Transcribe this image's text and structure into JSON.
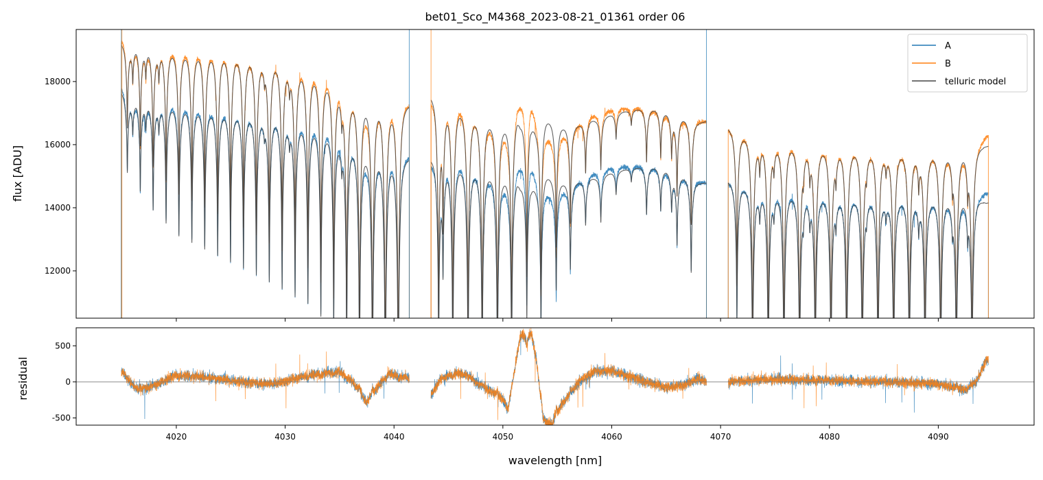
{
  "chart_data": {
    "type": "line",
    "title": "bet01_Sco_M4368_2023-08-21_01361  order 06",
    "xlabel": "wavelength [nm]",
    "xlim": [
      4010.8,
      4098.8
    ],
    "xticks": [
      4020,
      4030,
      4040,
      4050,
      4060,
      4070,
      4080,
      4090
    ],
    "panels": [
      {
        "name": "flux",
        "ylabel": "flux [ADU]",
        "ylim": [
          10500,
          19650
        ],
        "yticks": [
          12000,
          14000,
          16000,
          18000
        ]
      },
      {
        "name": "residual",
        "ylabel": "residual",
        "ylim": [
          -600,
          750
        ],
        "yticks": [
          -500,
          0,
          500
        ],
        "zero_line": true
      }
    ],
    "legend": {
      "position": "upper right",
      "entries": [
        "A",
        "B",
        "telluric model"
      ]
    },
    "colors": {
      "A": "#1f77b4",
      "B": "#ff7f0e",
      "telluric model": "#444444",
      "zero_line": "#777777"
    },
    "segments": [
      [
        4014.95,
        4041.4
      ],
      [
        4043.4,
        4068.7
      ],
      [
        4070.7,
        4094.6
      ]
    ],
    "continuum": {
      "A": [
        [
          4015,
          17900
        ],
        [
          4016,
          17550
        ],
        [
          4020,
          17450
        ],
        [
          4025,
          17200
        ],
        [
          4030,
          16950
        ],
        [
          4033,
          16800
        ],
        [
          4034.5,
          16650
        ],
        [
          4036,
          16300
        ],
        [
          4037.5,
          15700
        ],
        [
          4039,
          15900
        ],
        [
          4041.4,
          15700
        ],
        [
          4043.4,
          15500
        ],
        [
          4044,
          15750
        ],
        [
          4046,
          15650
        ],
        [
          4048,
          15300
        ],
        [
          4049.5,
          15000
        ],
        [
          4050.5,
          14800
        ],
        [
          4051.3,
          15500
        ],
        [
          4052.5,
          15700
        ],
        [
          4053.4,
          14800
        ],
        [
          4054.5,
          14500
        ],
        [
          4056,
          14700
        ],
        [
          4058,
          15100
        ],
        [
          4060,
          15300
        ],
        [
          4062,
          15350
        ],
        [
          4064,
          15300
        ],
        [
          4066,
          15100
        ],
        [
          4068.7,
          14800
        ],
        [
          4070.7,
          14900
        ],
        [
          4072,
          14850
        ],
        [
          4075,
          14700
        ],
        [
          4080,
          14550
        ],
        [
          4085,
          14450
        ],
        [
          4090,
          14400
        ],
        [
          4093,
          14350
        ],
        [
          4094.4,
          14500
        ]
      ],
      "B": [
        [
          4015,
          19450
        ],
        [
          4016,
          19300
        ],
        [
          4020,
          19200
        ],
        [
          4025,
          19050
        ],
        [
          4030,
          18750
        ],
        [
          4033,
          18500
        ],
        [
          4034.5,
          18300
        ],
        [
          4036,
          17800
        ],
        [
          4037.5,
          17300
        ],
        [
          4039,
          17600
        ],
        [
          4041.4,
          17400
        ],
        [
          4043.4,
          17500
        ],
        [
          4044,
          17700
        ],
        [
          4046,
          17500
        ],
        [
          4048,
          17000
        ],
        [
          4049.5,
          16700
        ],
        [
          4050.5,
          16500
        ],
        [
          4051.3,
          17500
        ],
        [
          4052.5,
          17700
        ],
        [
          4053.4,
          16600
        ],
        [
          4054.5,
          16300
        ],
        [
          4056,
          16500
        ],
        [
          4058,
          16950
        ],
        [
          4060,
          17150
        ],
        [
          4062,
          17200
        ],
        [
          4064,
          17150
        ],
        [
          4066,
          16950
        ],
        [
          4068.7,
          16750
        ],
        [
          4070.7,
          16600
        ],
        [
          4072,
          16500
        ],
        [
          4075,
          16300
        ],
        [
          4080,
          16100
        ],
        [
          4085,
          16000
        ],
        [
          4090,
          15900
        ],
        [
          4093,
          15850
        ],
        [
          4094.4,
          16300
        ]
      ]
    },
    "residual_trend": [
      [
        4015,
        150
      ],
      [
        4015.8,
        0
      ],
      [
        4016.5,
        -120
      ],
      [
        4018,
        -50
      ],
      [
        4020,
        100
      ],
      [
        4023,
        60
      ],
      [
        4026,
        0
      ],
      [
        4029,
        -30
      ],
      [
        4031,
        50
      ],
      [
        4033,
        120
      ],
      [
        4035,
        150
      ],
      [
        4036.2,
        0
      ],
      [
        4037.5,
        -300
      ],
      [
        4038.6,
        -50
      ],
      [
        4039.5,
        120
      ],
      [
        4041.4,
        50
      ],
      [
        4043.4,
        -200
      ],
      [
        4044.3,
        50
      ],
      [
        4045.5,
        130
      ],
      [
        4046.8,
        100
      ],
      [
        4047.5,
        0
      ],
      [
        4049,
        -150
      ],
      [
        4050,
        -250
      ],
      [
        4050.5,
        -400
      ],
      [
        4051,
        100
      ],
      [
        4051.6,
        650
      ],
      [
        4052.6,
        700
      ],
      [
        4053.1,
        300
      ],
      [
        4053.7,
        -550
      ],
      [
        4054.5,
        -600
      ],
      [
        4055.5,
        -300
      ],
      [
        4057,
        0
      ],
      [
        4058.5,
        150
      ],
      [
        4060,
        150
      ],
      [
        4061.5,
        80
      ],
      [
        4063,
        0
      ],
      [
        4065,
        -80
      ],
      [
        4066.5,
        -50
      ],
      [
        4068,
        50
      ],
      [
        4068.7,
        0
      ],
      [
        4070.7,
        0
      ],
      [
        4073,
        30
      ],
      [
        4076,
        40
      ],
      [
        4080,
        20
      ],
      [
        4085,
        0
      ],
      [
        4090,
        -30
      ],
      [
        4092.5,
        -120
      ],
      [
        4093.5,
        0
      ],
      [
        4094.4,
        300
      ]
    ],
    "telluric_lines": [
      [
        4015.5,
        0.14
      ],
      [
        4016.69,
        0.17
      ],
      [
        4017.87,
        0.2
      ],
      [
        4019.06,
        0.22
      ],
      [
        4020.24,
        0.24
      ],
      [
        4021.43,
        0.25
      ],
      [
        4022.61,
        0.26
      ],
      [
        4023.8,
        0.27
      ],
      [
        4024.98,
        0.28
      ],
      [
        4026.17,
        0.29
      ],
      [
        4027.35,
        0.3
      ],
      [
        4028.54,
        0.31
      ],
      [
        4029.72,
        0.32
      ],
      [
        4030.91,
        0.33
      ],
      [
        4032.09,
        0.34
      ],
      [
        4033.28,
        0.36
      ],
      [
        4034.46,
        0.38
      ],
      [
        4035.65,
        0.42
      ],
      [
        4036.83,
        0.48
      ],
      [
        4038.02,
        0.52
      ],
      [
        4039.2,
        0.55
      ],
      [
        4040.39,
        0.55
      ],
      [
        4016.0,
        0.06
      ],
      [
        4017.2,
        0.05
      ],
      [
        4018.4,
        0.05
      ],
      [
        4028.1,
        0.03
      ],
      [
        4030.4,
        0.04
      ],
      [
        4035.2,
        0.05
      ],
      [
        4044.1,
        0.4
      ],
      [
        4044.5,
        0.22
      ],
      [
        4045.4,
        0.45
      ],
      [
        4046.8,
        0.45
      ],
      [
        4048.1,
        0.45
      ],
      [
        4049.5,
        0.45
      ],
      [
        4050.8,
        0.42
      ],
      [
        4052.2,
        0.3
      ],
      [
        4053.5,
        0.32
      ],
      [
        4054.9,
        0.24
      ],
      [
        4056.2,
        0.19
      ],
      [
        4057.6,
        0.1
      ],
      [
        4059.0,
        0.1
      ],
      [
        4060.4,
        0.05
      ],
      [
        4061.8,
        0.03
      ],
      [
        4063.2,
        0.1
      ],
      [
        4064.5,
        0.09
      ],
      [
        4065.5,
        0.08
      ],
      [
        4066.0,
        0.15
      ],
      [
        4067.3,
        0.2
      ],
      [
        4071.5,
        0.3
      ],
      [
        4072.94,
        0.45
      ],
      [
        4074.38,
        0.45
      ],
      [
        4075.82,
        0.45
      ],
      [
        4077.26,
        0.45
      ],
      [
        4078.7,
        0.45
      ],
      [
        4080.14,
        0.45
      ],
      [
        4081.58,
        0.45
      ],
      [
        4083.02,
        0.45
      ],
      [
        4084.46,
        0.45
      ],
      [
        4085.9,
        0.45
      ],
      [
        4087.34,
        0.45
      ],
      [
        4088.78,
        0.45
      ],
      [
        4090.22,
        0.45
      ],
      [
        4091.66,
        0.45
      ],
      [
        4093.1,
        0.45
      ],
      [
        4073.6,
        0.06
      ],
      [
        4074.9,
        0.05
      ],
      [
        4077.6,
        0.05
      ],
      [
        4078.2,
        0.06
      ],
      [
        4080.6,
        0.06
      ],
      [
        4083.4,
        0.04
      ],
      [
        4085.2,
        0.04
      ],
      [
        4088.2,
        0.07
      ],
      [
        4091.3,
        0.06
      ],
      [
        4092.7,
        0.08
      ]
    ],
    "edge_spikes": [
      [
        "A",
        4014.95
      ],
      [
        "B",
        4015.0
      ],
      [
        "A",
        4041.4
      ],
      [
        "B",
        4043.4
      ],
      [
        "A",
        4068.7
      ]
    ]
  }
}
